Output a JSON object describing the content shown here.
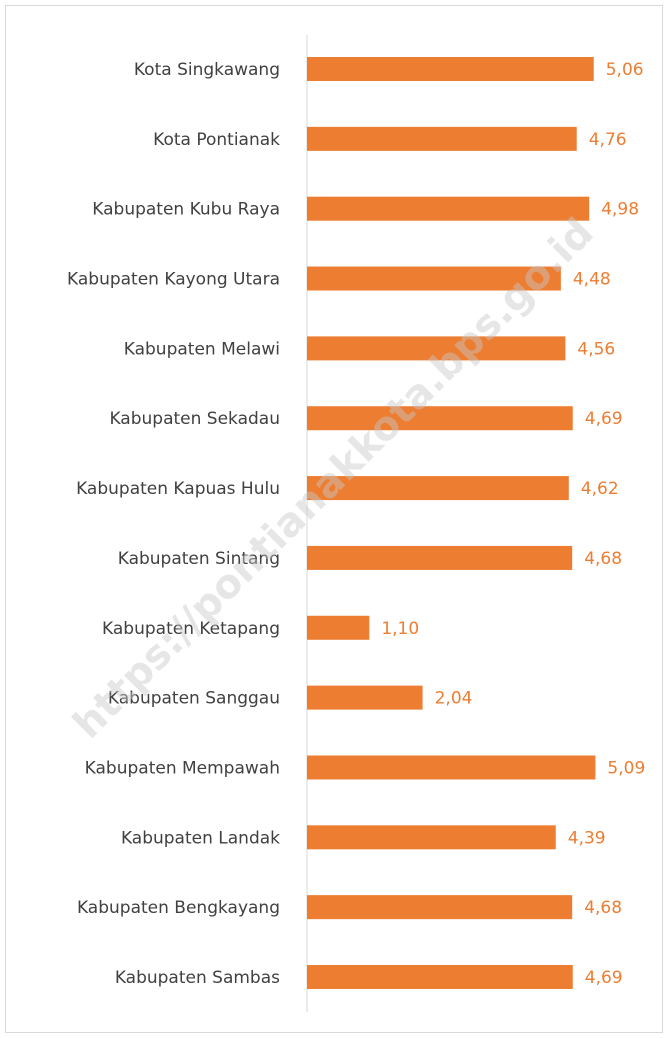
{
  "chart_data": {
    "type": "bar",
    "orientation": "horizontal",
    "categories": [
      "Kota Singkawang",
      "Kota Pontianak",
      "Kabupaten Kubu Raya",
      "Kabupaten Kayong Utara",
      "Kabupaten Melawi",
      "Kabupaten Sekadau",
      "Kabupaten Kapuas Hulu",
      "Kabupaten Sintang",
      "Kabupaten Ketapang",
      "Kabupaten Sanggau",
      "Kabupaten Mempawah",
      "Kabupaten Landak",
      "Kabupaten Bengkayang",
      "Kabupaten Sambas"
    ],
    "values": [
      5.06,
      4.76,
      4.98,
      4.48,
      4.56,
      4.69,
      4.62,
      4.68,
      1.1,
      2.04,
      5.09,
      4.39,
      4.68,
      4.69
    ],
    "value_labels": [
      "5,06",
      "4,76",
      "4,98",
      "4,48",
      "4,56",
      "4,69",
      "4,62",
      "4,68",
      "1,10",
      "2,04",
      "5,09",
      "4,39",
      "4,68",
      "4,69"
    ],
    "color": "#ed7d31",
    "xlim": [
      0,
      6
    ],
    "watermark": "https://pontianakkota.bps.go.id"
  }
}
